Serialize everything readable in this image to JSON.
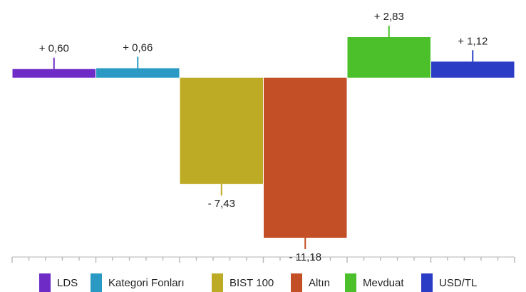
{
  "chart_data": {
    "type": "bar",
    "categories": [
      "LDS",
      "Kategori Fonları",
      "BIST 100",
      "Altın",
      "Mevduat",
      "USD/TL"
    ],
    "values": [
      0.6,
      0.66,
      -7.43,
      -11.18,
      2.83,
      1.12
    ],
    "value_labels": [
      "+ 0,60",
      "+ 0,66",
      "- 7,43",
      "- 11,18",
      "+ 2,83",
      "+ 1,12"
    ],
    "colors": [
      "#6f2bc6",
      "#2a9ac4",
      "#bdab25",
      "#c24f26",
      "#4cc02a",
      "#2a3dc4"
    ]
  }
}
